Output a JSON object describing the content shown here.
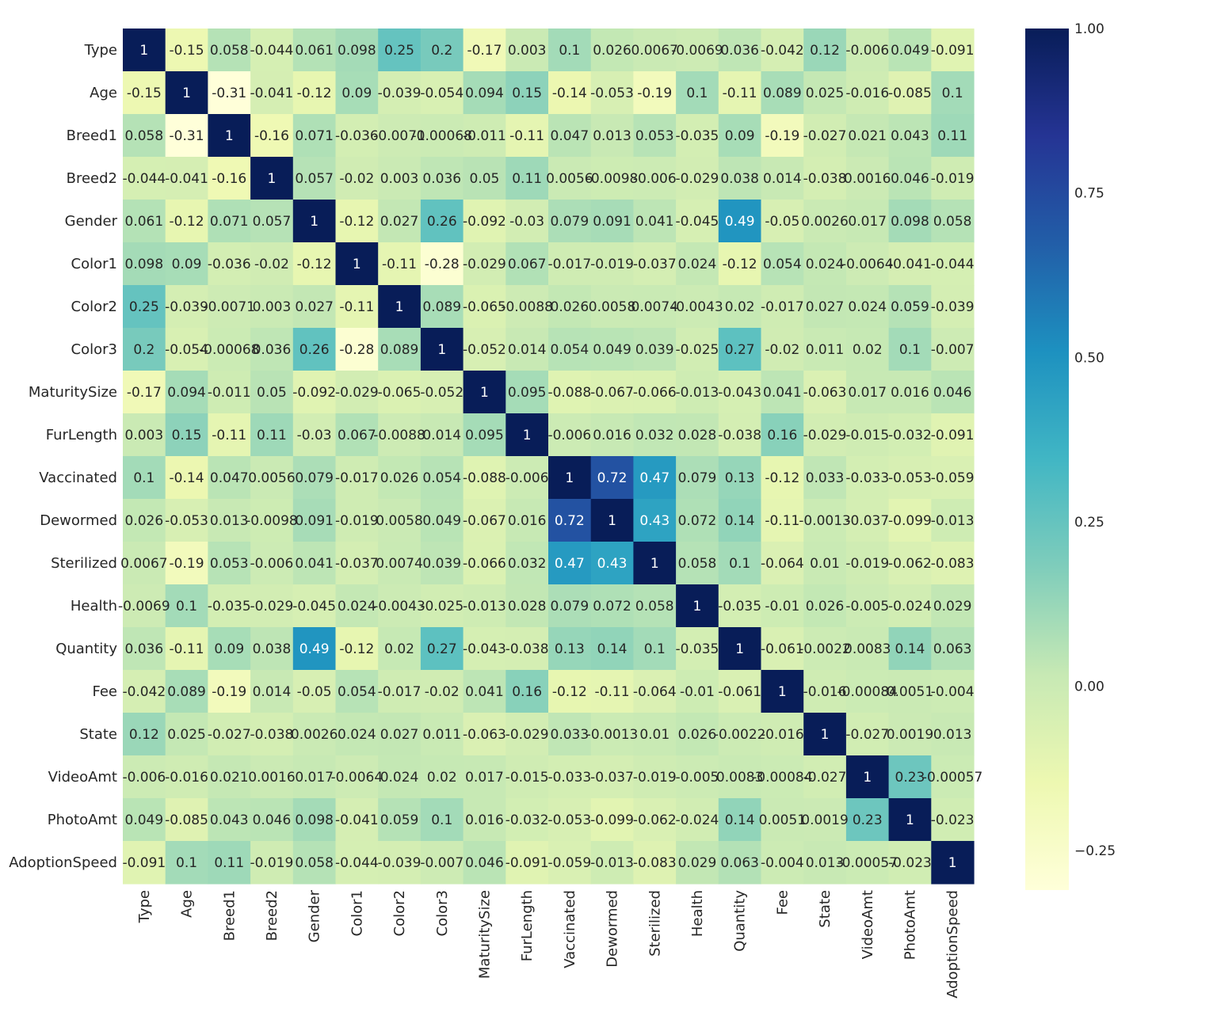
{
  "chart_data": {
    "type": "heatmap",
    "title": "",
    "xlabel": "",
    "ylabel": "",
    "labels": [
      "Type",
      "Age",
      "Breed1",
      "Breed2",
      "Gender",
      "Color1",
      "Color2",
      "Color3",
      "MaturitySize",
      "FurLength",
      "Vaccinated",
      "Dewormed",
      "Sterilized",
      "Health",
      "Quantity",
      "Fee",
      "State",
      "VideoAmt",
      "PhotoAmt",
      "AdoptionSpeed"
    ],
    "cell_text": [
      [
        "1",
        "-0.15",
        "0.058",
        "-0.044",
        "0.061",
        "0.098",
        "0.25",
        "0.2",
        "-0.17",
        "0.003",
        "0.1",
        "0.026",
        "0.0067",
        "-0.0069",
        "0.036",
        "-0.042",
        "0.12",
        "-0.006",
        "0.049",
        "-0.091"
      ],
      [
        "-0.15",
        "1",
        "-0.31",
        "-0.041",
        "-0.12",
        "0.09",
        "-0.039",
        "-0.054",
        "0.094",
        "0.15",
        "-0.14",
        "-0.053",
        "-0.19",
        "0.1",
        "-0.11",
        "0.089",
        "0.025",
        "-0.016",
        "-0.085",
        "0.1"
      ],
      [
        "0.058",
        "-0.31",
        "1",
        "-0.16",
        "0.071",
        "-0.036",
        "-0.0071",
        "-0.00068",
        "-0.011",
        "-0.11",
        "0.047",
        "0.013",
        "0.053",
        "-0.035",
        "0.09",
        "-0.19",
        "-0.027",
        "0.021",
        "0.043",
        "0.11"
      ],
      [
        "-0.044",
        "-0.041",
        "-0.16",
        "1",
        "0.057",
        "-0.02",
        "0.003",
        "0.036",
        "0.05",
        "0.11",
        "0.0056",
        "-0.0098",
        "-0.006",
        "-0.029",
        "0.038",
        "0.014",
        "-0.038",
        "0.0016",
        "0.046",
        "-0.019"
      ],
      [
        "0.061",
        "-0.12",
        "0.071",
        "0.057",
        "1",
        "-0.12",
        "0.027",
        "0.26",
        "-0.092",
        "-0.03",
        "0.079",
        "0.091",
        "0.041",
        "-0.045",
        "0.49",
        "-0.05",
        "0.0026",
        "0.017",
        "0.098",
        "0.058"
      ],
      [
        "0.098",
        "0.09",
        "-0.036",
        "-0.02",
        "-0.12",
        "1",
        "-0.11",
        "-0.28",
        "-0.029",
        "0.067",
        "-0.017",
        "-0.019",
        "-0.037",
        "0.024",
        "-0.12",
        "0.054",
        "0.024",
        "-0.0064",
        "-0.041",
        "-0.044"
      ],
      [
        "0.25",
        "-0.039",
        "-0.0071",
        "0.003",
        "0.027",
        "-0.11",
        "1",
        "0.089",
        "-0.065",
        "-0.0088",
        "0.026",
        "0.0058",
        "0.0074",
        "-0.0043",
        "0.02",
        "-0.017",
        "0.027",
        "0.024",
        "0.059",
        "-0.039"
      ],
      [
        "0.2",
        "-0.054",
        "-0.00068",
        "0.036",
        "0.26",
        "-0.28",
        "0.089",
        "1",
        "-0.052",
        "0.014",
        "0.054",
        "0.049",
        "0.039",
        "-0.025",
        "0.27",
        "-0.02",
        "0.011",
        "0.02",
        "0.1",
        "-0.007"
      ],
      [
        "-0.17",
        "0.094",
        "-0.011",
        "0.05",
        "-0.092",
        "-0.029",
        "-0.065",
        "-0.052",
        "1",
        "0.095",
        "-0.088",
        "-0.067",
        "-0.066",
        "-0.013",
        "-0.043",
        "0.041",
        "-0.063",
        "0.017",
        "0.016",
        "0.046"
      ],
      [
        "0.003",
        "0.15",
        "-0.11",
        "0.11",
        "-0.03",
        "0.067",
        "-0.0088",
        "0.014",
        "0.095",
        "1",
        "-0.006",
        "0.016",
        "0.032",
        "0.028",
        "-0.038",
        "0.16",
        "-0.029",
        "-0.015",
        "-0.032",
        "-0.091"
      ],
      [
        "0.1",
        "-0.14",
        "0.047",
        "0.0056",
        "0.079",
        "-0.017",
        "0.026",
        "0.054",
        "-0.088",
        "-0.006",
        "1",
        "0.72",
        "0.47",
        "0.079",
        "0.13",
        "-0.12",
        "0.033",
        "-0.033",
        "-0.053",
        "-0.059"
      ],
      [
        "0.026",
        "-0.053",
        "0.013",
        "-0.0098",
        "0.091",
        "-0.019",
        "0.0058",
        "0.049",
        "-0.067",
        "0.016",
        "0.72",
        "1",
        "0.43",
        "0.072",
        "0.14",
        "-0.11",
        "-0.0013",
        "-0.037",
        "-0.099",
        "-0.013"
      ],
      [
        "0.0067",
        "-0.19",
        "0.053",
        "-0.006",
        "0.041",
        "-0.037",
        "0.0074",
        "0.039",
        "-0.066",
        "0.032",
        "0.47",
        "0.43",
        "1",
        "0.058",
        "0.1",
        "-0.064",
        "0.01",
        "-0.019",
        "-0.062",
        "-0.083"
      ],
      [
        "-0.0069",
        "0.1",
        "-0.035",
        "-0.029",
        "-0.045",
        "0.024",
        "-0.0043",
        "-0.025",
        "-0.013",
        "0.028",
        "0.079",
        "0.072",
        "0.058",
        "1",
        "-0.035",
        "-0.01",
        "0.026",
        "-0.005",
        "-0.024",
        "0.029"
      ],
      [
        "0.036",
        "-0.11",
        "0.09",
        "0.038",
        "0.49",
        "-0.12",
        "0.02",
        "0.27",
        "-0.043",
        "-0.038",
        "0.13",
        "0.14",
        "0.1",
        "-0.035",
        "1",
        "-0.061",
        "-0.0022",
        "0.0083",
        "0.14",
        "0.063"
      ],
      [
        "-0.042",
        "0.089",
        "-0.19",
        "0.014",
        "-0.05",
        "0.054",
        "-0.017",
        "-0.02",
        "0.041",
        "0.16",
        "-0.12",
        "-0.11",
        "-0.064",
        "-0.01",
        "-0.061",
        "1",
        "-0.016",
        "-0.00084",
        "0.0051",
        "-0.004"
      ],
      [
        "0.12",
        "0.025",
        "-0.027",
        "-0.038",
        "0.0026",
        "0.024",
        "0.027",
        "0.011",
        "-0.063",
        "-0.029",
        "0.033",
        "-0.0013",
        "0.01",
        "0.026",
        "-0.0022",
        "-0.016",
        "1",
        "-0.027",
        "0.0019",
        "0.013"
      ],
      [
        "-0.006",
        "-0.016",
        "0.021",
        "0.0016",
        "0.017",
        "-0.0064",
        "0.024",
        "0.02",
        "0.017",
        "-0.015",
        "-0.033",
        "-0.037",
        "-0.019",
        "-0.005",
        "0.0083",
        "-0.00084",
        "-0.027",
        "1",
        "0.23",
        "-0.00057"
      ],
      [
        "0.049",
        "-0.085",
        "0.043",
        "0.046",
        "0.098",
        "-0.041",
        "0.059",
        "0.1",
        "0.016",
        "-0.032",
        "-0.053",
        "-0.099",
        "-0.062",
        "-0.024",
        "0.14",
        "0.0051",
        "0.0019",
        "0.23",
        "1",
        "-0.023"
      ],
      [
        "-0.091",
        "0.1",
        "0.11",
        "-0.019",
        "0.058",
        "-0.044",
        "-0.039",
        "-0.007",
        "0.046",
        "-0.091",
        "-0.059",
        "-0.013",
        "-0.083",
        "0.029",
        "0.063",
        "-0.004",
        "0.013",
        "-0.00057",
        "-0.023",
        "1"
      ]
    ],
    "colorbar": {
      "min": -0.31,
      "max": 1.0,
      "ticks": [
        1.0,
        0.75,
        0.5,
        0.25,
        0.0,
        -0.25
      ],
      "tick_labels": [
        "1.00",
        "0.75",
        "0.50",
        "0.25",
        "0.00",
        "−0.25"
      ]
    },
    "colormap": "YlGnBu",
    "annot_light_threshold": 0.4,
    "annot_dark_color": "#262626",
    "annot_light_color": "#ffffff",
    "label_color": "#262626",
    "grid": false
  }
}
